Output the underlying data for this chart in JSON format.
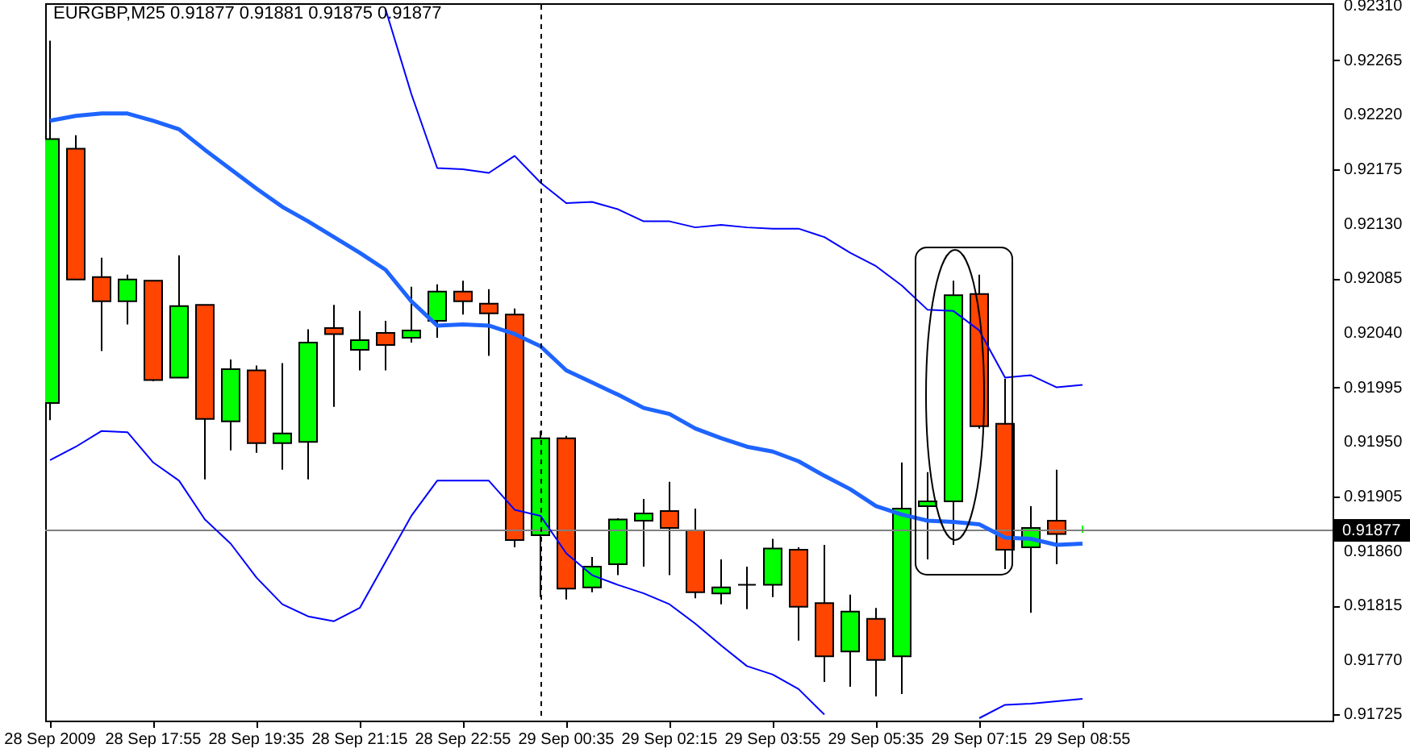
{
  "chart_data": {
    "type": "candlestick",
    "title": "EURGBP,M25  0.91877 0.91881 0.91875 0.91877",
    "categories": [
      "28 Sep 2009",
      null,
      null,
      null,
      "28 Sep 17:55",
      null,
      null,
      null,
      "28 Sep 19:35",
      null,
      null,
      null,
      "28 Sep 21:15",
      null,
      null,
      null,
      "28 Sep 22:55",
      null,
      null,
      null,
      "29 Sep 00:35",
      null,
      null,
      null,
      "29 Sep 02:15",
      null,
      null,
      null,
      "29 Sep 03:55",
      null,
      null,
      null,
      "29 Sep 05:35",
      null,
      null,
      null,
      "29 Sep 07:15",
      null,
      null,
      null,
      "29 Sep 08:55"
    ],
    "ohlc": [
      [
        0.91982,
        0.92281,
        0.91968,
        0.922
      ],
      [
        0.92192,
        0.92203,
        0.92084,
        0.92084
      ],
      [
        0.92086,
        0.92102,
        0.92025,
        0.92066
      ],
      [
        0.92066,
        0.92088,
        0.92047,
        0.92084
      ],
      [
        0.92083,
        0.92083,
        0.92,
        0.92001
      ],
      [
        0.92003,
        0.92104,
        0.92003,
        0.92062
      ],
      [
        0.92063,
        0.92063,
        0.91919,
        0.91969
      ],
      [
        0.91967,
        0.92018,
        0.91943,
        0.9201
      ],
      [
        0.92009,
        0.92013,
        0.91941,
        0.91949
      ],
      [
        0.91949,
        0.92015,
        0.91927,
        0.91957
      ],
      [
        0.9195,
        0.92043,
        0.91919,
        0.92032
      ],
      [
        0.92044,
        0.92063,
        0.91979,
        0.92039
      ],
      [
        0.92026,
        0.92058,
        0.92009,
        0.92034
      ],
      [
        0.9204,
        0.9205,
        0.92009,
        0.9203
      ],
      [
        0.92036,
        0.92078,
        0.92032,
        0.92042
      ],
      [
        0.9205,
        0.9208,
        0.92036,
        0.92074
      ],
      [
        0.92074,
        0.92083,
        0.92055,
        0.92066
      ],
      [
        0.92064,
        0.92076,
        0.92021,
        0.92056
      ],
      [
        0.92055,
        0.9206,
        0.91863,
        0.91869
      ],
      [
        0.91873,
        0.91959,
        0.91822,
        0.91953
      ],
      [
        0.91953,
        0.91955,
        0.9182,
        0.91829
      ],
      [
        0.9183,
        0.91855,
        0.91826,
        0.91847
      ],
      [
        0.91849,
        0.91887,
        0.9184,
        0.91886
      ],
      [
        0.91885,
        0.91903,
        0.91847,
        0.91891
      ],
      [
        0.91893,
        0.91917,
        0.9184,
        0.91879
      ],
      [
        0.91877,
        0.91895,
        0.91821,
        0.91826
      ],
      [
        0.91825,
        0.91853,
        0.91816,
        0.9183
      ],
      [
        0.91832,
        0.91847,
        0.91812,
        0.91832
      ],
      [
        0.91832,
        0.9187,
        0.91822,
        0.91862
      ],
      [
        0.91861,
        0.91863,
        0.91786,
        0.91814
      ],
      [
        0.91817,
        0.91865,
        0.91752,
        0.91773
      ],
      [
        0.91777,
        0.91824,
        0.91748,
        0.9181
      ],
      [
        0.91804,
        0.91813,
        0.9174,
        0.9177
      ],
      [
        0.91773,
        0.91933,
        0.91742,
        0.91895
      ],
      [
        0.91897,
        0.91925,
        0.91853,
        0.91901
      ],
      [
        0.91901,
        0.92083,
        0.91865,
        0.92071
      ],
      [
        0.92072,
        0.92088,
        0.91961,
        0.91963
      ],
      [
        0.91965,
        0.92002,
        0.91845,
        0.91861
      ],
      [
        0.91863,
        0.91897,
        0.91809,
        0.91879
      ],
      [
        0.91885,
        0.91927,
        0.91849,
        0.91874
      ],
      [
        0.91877,
        0.91881,
        0.91875,
        0.91877
      ]
    ],
    "colors": [
      "#00ff00",
      "#ff4500",
      "#ff4500",
      "#00ff00",
      "#ff4500",
      "#00ff00",
      "#ff4500",
      "#00ff00",
      "#ff4500",
      "#00ff00",
      "#00ff00",
      "#ff4500",
      "#00ff00",
      "#ff4500",
      "#00ff00",
      "#00ff00",
      "#ff4500",
      "#ff4500",
      "#ff4500",
      "#00ff00",
      "#ff4500",
      "#00ff00",
      "#00ff00",
      "#00ff00",
      "#ff4500",
      "#ff4500",
      "#00ff00",
      "#000000",
      "#00ff00",
      "#ff4500",
      "#ff4500",
      "#00ff00",
      "#ff4500",
      "#00ff00",
      "#00ff00",
      "#00ff00",
      "#ff4500",
      "#ff4500",
      "#00ff00",
      "#ff4500",
      "#00ff00"
    ],
    "series": [
      {
        "type": "line",
        "color": "#0000ff",
        "values": [
          null,
          null,
          null,
          null,
          null,
          null,
          null,
          null,
          null,
          null,
          null,
          null,
          null,
          0.92307,
          0.92237,
          0.92176,
          0.92175,
          0.92172,
          0.92186,
          0.92164,
          0.92147,
          0.92148,
          0.92142,
          0.92132,
          0.92132,
          0.92127,
          0.92129,
          0.92127,
          0.92126,
          0.92126,
          0.92119,
          0.92106,
          0.92095,
          0.92079,
          0.92059,
          0.92058,
          0.92042,
          0.92003,
          0.92005,
          0.91995,
          0.91997
        ]
      },
      {
        "type": "line",
        "color": "#1e64ff",
        "values": [
          0.92215,
          0.92219,
          0.92221,
          0.92221,
          0.92215,
          0.92208,
          0.92191,
          0.92175,
          0.92159,
          0.92144,
          0.92132,
          0.92119,
          0.92106,
          0.92092,
          0.92066,
          0.92046,
          0.92047,
          0.92046,
          0.92039,
          0.92029,
          0.92009,
          0.91999,
          0.91989,
          0.91978,
          0.91973,
          0.91961,
          0.91953,
          0.91946,
          0.91942,
          0.91934,
          0.91922,
          0.91911,
          0.91897,
          0.9189,
          0.91885,
          0.91884,
          0.91882,
          0.91871,
          0.9187,
          0.91865,
          0.91866
        ]
      },
      {
        "type": "line",
        "color": "#0000ff",
        "values": [
          0.91935,
          0.91946,
          0.91959,
          0.91958,
          0.91933,
          0.91918,
          0.91886,
          0.91866,
          0.91838,
          0.91816,
          0.91806,
          0.91802,
          0.91813,
          0.91851,
          0.91889,
          0.91918,
          0.91918,
          0.91918,
          0.91894,
          0.91889,
          0.91858,
          0.9184,
          0.91832,
          0.91825,
          0.91816,
          0.918,
          0.91782,
          0.91765,
          0.91758,
          0.91746,
          0.91725,
          null,
          null,
          null,
          null,
          null,
          0.91722,
          0.91733,
          0.91734,
          0.91736,
          0.91738
        ]
      }
    ],
    "ylim": [
      0.9172,
      0.92312
    ],
    "yticks": [
      {
        "value": 0.9231,
        "label": "0.92310"
      },
      0.92265,
      {
        "value": 0.9222,
        "label": "0.92220"
      },
      0.92175,
      {
        "value": 0.9213,
        "label": "0.92130"
      },
      0.92085,
      {
        "value": 0.9204,
        "label": "0.92040"
      },
      0.91995,
      {
        "value": 0.9195,
        "label": "0.91950"
      },
      0.91905,
      {
        "value": 0.9186,
        "label": "0.91860"
      },
      0.91815,
      {
        "value": 0.9177,
        "label": "0.91770"
      },
      0.91725
    ],
    "ref_lines": [
      {
        "axis": "y",
        "value": 0.91877,
        "label": "0.91877",
        "color": "#808080"
      }
    ]
  }
}
